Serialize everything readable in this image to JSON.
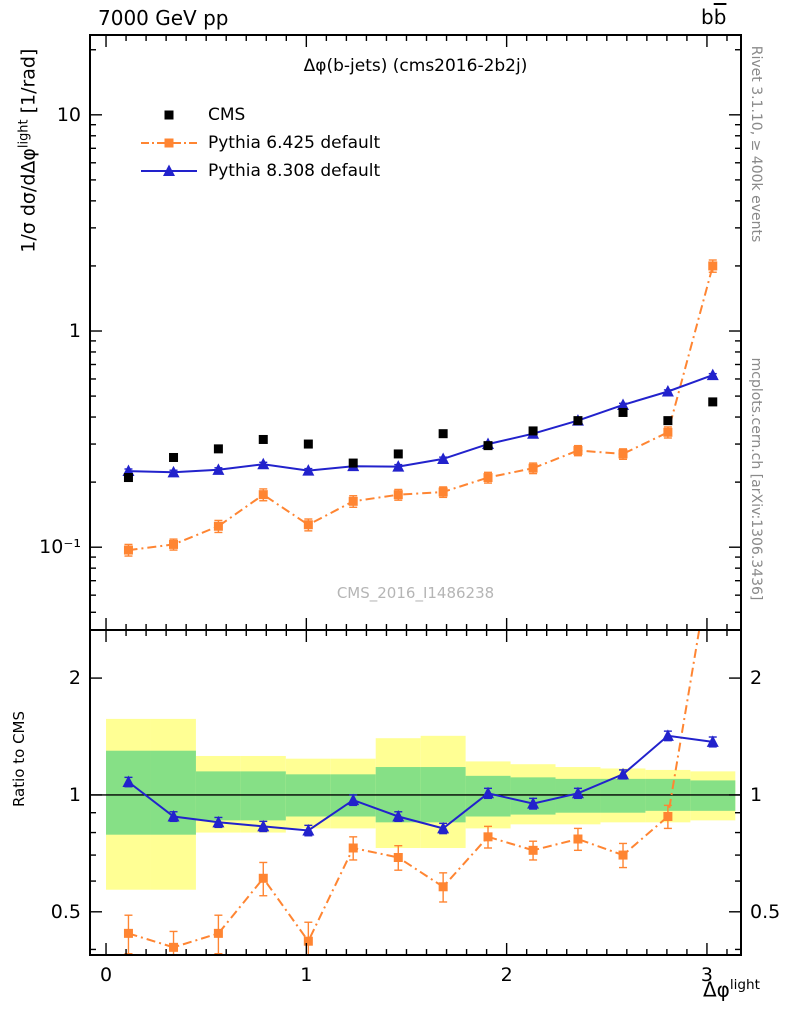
{
  "header": {
    "left": "7000 GeV pp",
    "right_b1": "b",
    "right_b2": "b"
  },
  "titles": {
    "main": "Δφ(b-jets) (cms2016-2b2j)",
    "watermark": "CMS_2016_I1486238"
  },
  "ylabels": {
    "top_prefix": "1/σ dσ/dΔφ",
    "top_sup": "light",
    "top_suffix": " [1/rad]",
    "ratio": "Ratio to CMS"
  },
  "xlabel": {
    "main": "Δφ",
    "sup": "light"
  },
  "side_labels": {
    "right_top": "Rivet 3.1.10, ≥ 400k events",
    "right_bottom": "mcplots.cern.ch [arXiv:1306.3436]"
  },
  "chart_data": {
    "type": "line",
    "x": [
      0.112,
      0.337,
      0.561,
      0.785,
      1.01,
      1.234,
      1.459,
      1.683,
      1.907,
      2.132,
      2.356,
      2.581,
      2.805,
      3.029
    ],
    "band_colors": {
      "yellow": "#ffff94",
      "green": "#86e086"
    },
    "legend": [
      {
        "label": "CMS",
        "marker": "square",
        "color": "#000000",
        "line": "none"
      },
      {
        "label": "Pythia 6.425 default",
        "marker": "square",
        "color": "#ff8532",
        "line": "dashdot"
      },
      {
        "label": "Pythia 8.308 default",
        "marker": "triangle",
        "color": "#2222cc",
        "line": "solid"
      }
    ],
    "axes": {
      "x": {
        "range": [
          -0.08,
          3.17
        ],
        "majors": [
          0,
          1,
          2,
          3
        ],
        "labels": [
          "0",
          "1",
          "2",
          "3"
        ],
        "minor_step": 0.1
      },
      "y_top": {
        "scale": "log",
        "majors": [
          0.1,
          1,
          10
        ],
        "labels": [
          "10⁻¹",
          "1",
          "10"
        ]
      },
      "y_ratio": {
        "scale": "log",
        "majors": [
          0.5,
          1,
          2
        ],
        "labels": [
          "0.5",
          "1",
          "2"
        ],
        "minors": [
          0.4,
          0.6,
          0.7,
          0.8,
          0.9
        ]
      }
    },
    "top_panel": {
      "yrange": [
        0.0414,
        23.4
      ],
      "series": [
        {
          "name": "CMS",
          "color": "#000000",
          "marker": "square",
          "linestyle": "none",
          "y": [
            0.21,
            0.26,
            0.285,
            0.315,
            0.3,
            0.245,
            0.27,
            0.335,
            0.295,
            0.345,
            0.385,
            0.42,
            0.385,
            0.47
          ],
          "yerr": [
            0.008,
            0.008,
            0.009,
            0.01,
            0.01,
            0.008,
            0.009,
            0.01,
            0.01,
            0.01,
            0.012,
            0.013,
            0.012,
            0.015
          ]
        },
        {
          "name": "Pythia 6.425 default",
          "color": "#ff8532",
          "marker": "square",
          "linestyle": "dashdot",
          "y": [
            0.097,
            0.103,
            0.125,
            0.175,
            0.127,
            0.163,
            0.175,
            0.18,
            0.21,
            0.232,
            0.28,
            0.27,
            0.34,
            2.0
          ],
          "yerr": [
            0.006,
            0.006,
            0.008,
            0.011,
            0.008,
            0.01,
            0.01,
            0.01,
            0.012,
            0.013,
            0.015,
            0.015,
            0.02,
            0.13
          ]
        },
        {
          "name": "Pythia 8.308 default",
          "color": "#2222cc",
          "marker": "triangle",
          "linestyle": "solid",
          "y": [
            0.225,
            0.222,
            0.228,
            0.242,
            0.226,
            0.237,
            0.236,
            0.256,
            0.3,
            0.335,
            0.385,
            0.455,
            0.525,
            0.625
          ],
          "yerr": [
            0.005,
            0.005,
            0.005,
            0.005,
            0.005,
            0.005,
            0.005,
            0.005,
            0.006,
            0.006,
            0.007,
            0.008,
            0.009,
            0.01
          ]
        }
      ]
    },
    "ratio_panel": {
      "yrange": [
        0.387,
        2.66
      ],
      "series": [
        {
          "name": "Pythia 6.425 default",
          "color": "#ff8532",
          "marker": "square",
          "linestyle": "dashdot",
          "y": [
            0.44,
            0.405,
            0.44,
            0.61,
            0.42,
            0.73,
            0.69,
            0.58,
            0.78,
            0.72,
            0.77,
            0.7,
            0.88,
            4.3
          ],
          "yerr": [
            0.05,
            0.04,
            0.05,
            0.06,
            0.05,
            0.05,
            0.05,
            0.05,
            0.05,
            0.04,
            0.05,
            0.05,
            0.06,
            0.4
          ]
        },
        {
          "name": "Pythia 8.308 default",
          "color": "#2222cc",
          "marker": "triangle",
          "linestyle": "solid",
          "y": [
            1.08,
            0.88,
            0.85,
            0.83,
            0.81,
            0.97,
            0.88,
            0.82,
            1.01,
            0.95,
            1.01,
            1.13,
            1.42,
            1.37
          ],
          "yerr": [
            0.03,
            0.025,
            0.025,
            0.025,
            0.025,
            0.03,
            0.025,
            0.025,
            0.03,
            0.03,
            0.03,
            0.03,
            0.04,
            0.04
          ]
        }
      ],
      "bands": {
        "edges": [
          0,
          0.2244,
          0.4488,
          0.6732,
          0.8976,
          1.122,
          1.3464,
          1.5708,
          1.7952,
          2.0196,
          2.244,
          2.4684,
          2.6928,
          2.9172,
          3.1416
        ],
        "yellow": [
          [
            0.57,
            1.57
          ],
          [
            0.57,
            1.57
          ],
          [
            0.8,
            1.26
          ],
          [
            0.8,
            1.26
          ],
          [
            0.82,
            1.24
          ],
          [
            0.82,
            1.24
          ],
          [
            0.73,
            1.4
          ],
          [
            0.73,
            1.42
          ],
          [
            0.82,
            1.22
          ],
          [
            0.84,
            1.2
          ],
          [
            0.84,
            1.18
          ],
          [
            0.85,
            1.17
          ],
          [
            0.85,
            1.16
          ],
          [
            0.86,
            1.15
          ]
        ],
        "green": [
          [
            0.79,
            1.3
          ],
          [
            0.79,
            1.3
          ],
          [
            0.86,
            1.15
          ],
          [
            0.86,
            1.15
          ],
          [
            0.88,
            1.13
          ],
          [
            0.88,
            1.13
          ],
          [
            0.85,
            1.18
          ],
          [
            0.85,
            1.18
          ],
          [
            0.88,
            1.12
          ],
          [
            0.89,
            1.11
          ],
          [
            0.9,
            1.1
          ],
          [
            0.9,
            1.1
          ],
          [
            0.91,
            1.1
          ],
          [
            0.91,
            1.09
          ]
        ]
      }
    }
  }
}
